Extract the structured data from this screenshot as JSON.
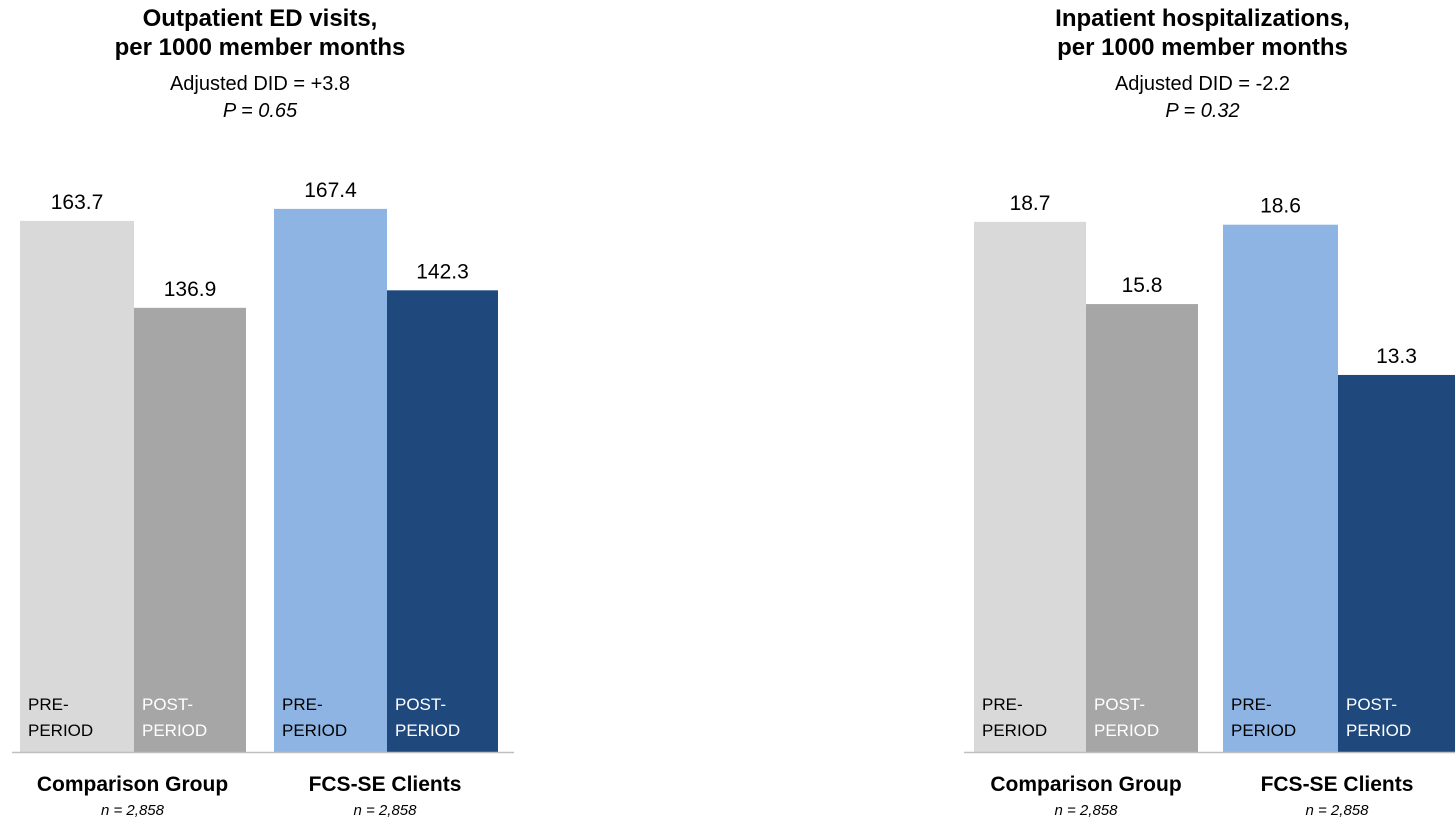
{
  "chart_data": [
    {
      "type": "bar",
      "title_line1": "Outpatient ED visits,",
      "title_line2": "per 1000 member months",
      "did": "Adjusted DID = +3.8",
      "p_value": "P = 0.65",
      "ylim": [
        0,
        180
      ],
      "grid": false,
      "bar_labels": [
        "PRE-",
        "PERIOD",
        "POST-",
        "PERIOD"
      ],
      "groups": [
        {
          "name": "Comparison Group",
          "n": "n = 2,858",
          "bars": [
            {
              "period_line1": "PRE-",
              "period_line2": "PERIOD",
              "value": 163.7,
              "value_label": "163.7",
              "color": "#d9d9d9",
              "text_color": "#000000"
            },
            {
              "period_line1": "POST-",
              "period_line2": "PERIOD",
              "value": 136.9,
              "value_label": "136.9",
              "color": "#a6a6a6",
              "text_color": "#ffffff"
            }
          ]
        },
        {
          "name": "FCS-SE Clients",
          "n": "n = 2,858",
          "bars": [
            {
              "period_line1": "PRE-",
              "period_line2": "PERIOD",
              "value": 167.4,
              "value_label": "167.4",
              "color": "#8eb4e3",
              "text_color": "#000000"
            },
            {
              "period_line1": "POST-",
              "period_line2": "PERIOD",
              "value": 142.3,
              "value_label": "142.3",
              "color": "#1f497d",
              "text_color": "#ffffff"
            }
          ]
        }
      ]
    },
    {
      "type": "bar",
      "title_line1": "Inpatient hospitalizations,",
      "title_line2": "per 1000 member months",
      "did": "Adjusted DID = -2.2",
      "p_value": "P = 0.32",
      "ylim": [
        0,
        20.6
      ],
      "grid": false,
      "groups": [
        {
          "name": "Comparison Group",
          "n": "n = 2,858",
          "bars": [
            {
              "period_line1": "PRE-",
              "period_line2": "PERIOD",
              "value": 18.7,
              "value_label": "18.7",
              "color": "#d9d9d9",
              "text_color": "#000000"
            },
            {
              "period_line1": "POST-",
              "period_line2": "PERIOD",
              "value": 15.8,
              "value_label": "15.8",
              "color": "#a6a6a6",
              "text_color": "#ffffff"
            }
          ]
        },
        {
          "name": "FCS-SE Clients",
          "n": "n = 2,858",
          "bars": [
            {
              "period_line1": "PRE-",
              "period_line2": "PERIOD",
              "value": 18.6,
              "value_label": "18.6",
              "color": "#8eb4e3",
              "text_color": "#000000"
            },
            {
              "period_line1": "POST-",
              "period_line2": "PERIOD",
              "value": 13.3,
              "value_label": "13.3",
              "color": "#1f497d",
              "text_color": "#ffffff"
            }
          ]
        }
      ]
    }
  ]
}
